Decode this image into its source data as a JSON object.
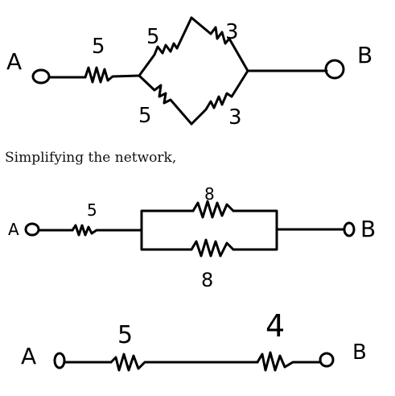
{
  "caption": "Simplifying the network,",
  "terminals": {
    "a": "A",
    "b": "B"
  },
  "diagram1": {
    "series_value": "5",
    "upper_left_value": "5",
    "upper_right_value": "3",
    "lower_left_value": "5",
    "lower_right_value": "3"
  },
  "diagram2": {
    "series_value": "5",
    "parallel_top_value": "8",
    "parallel_bottom_value": "8"
  },
  "diagram3": {
    "series_left_value": "5",
    "series_right_value": "4"
  },
  "colors": {
    "ink": "#000000",
    "text": "#111111",
    "background": "#ffffff"
  }
}
